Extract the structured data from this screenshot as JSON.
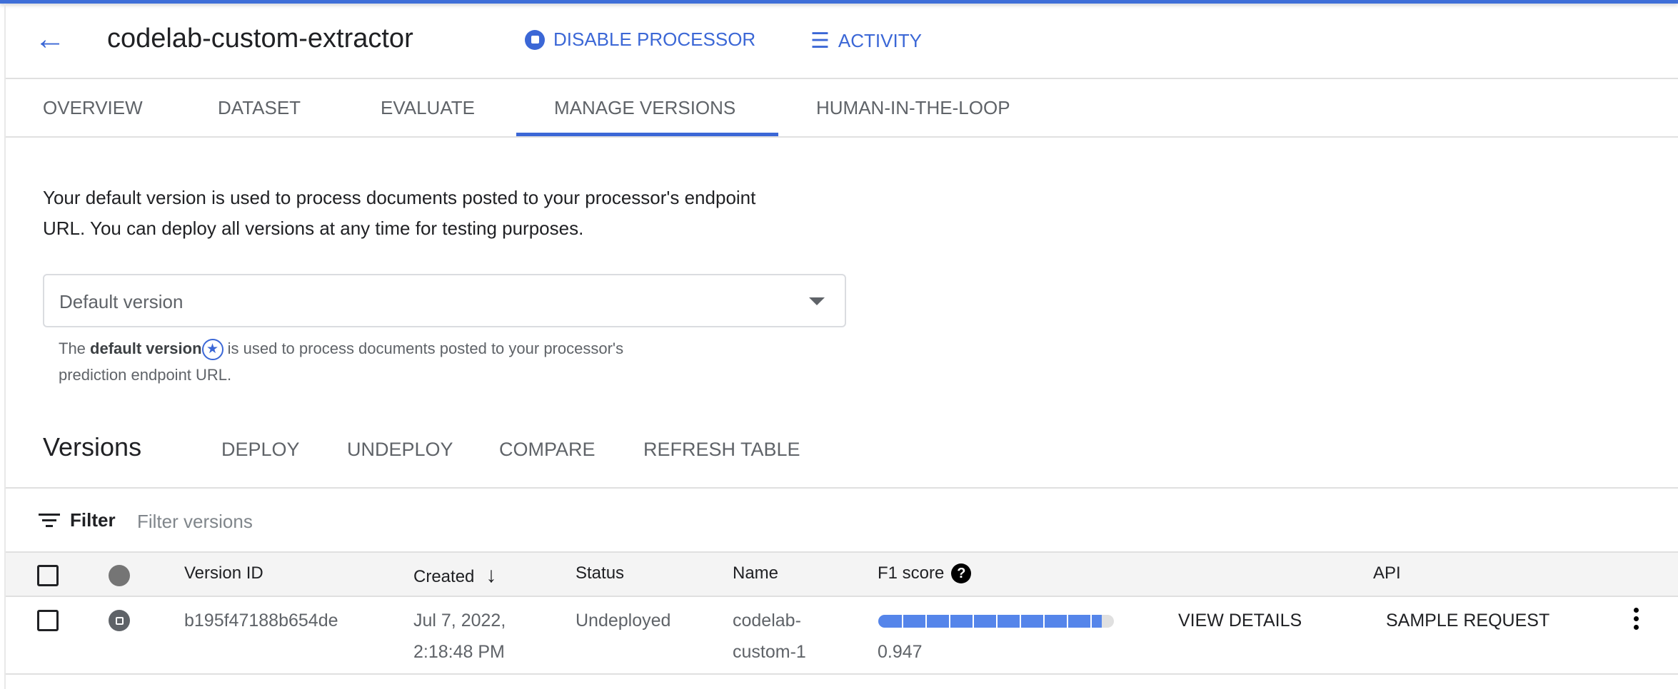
{
  "header": {
    "title": "codelab-custom-extractor",
    "disable_label": "DISABLE PROCESSOR",
    "activity_label": "ACTIVITY"
  },
  "tabs": [
    {
      "label": "OVERVIEW"
    },
    {
      "label": "DATASET"
    },
    {
      "label": "EVALUATE"
    },
    {
      "label": "MANAGE VERSIONS",
      "active": true
    },
    {
      "label": "HUMAN-IN-THE-LOOP"
    }
  ],
  "intro": {
    "line1": "Your default version is used to process documents posted to your processor's endpoint",
    "line2": "URL. You can deploy all versions at any time for testing purposes."
  },
  "default_select": {
    "placeholder": "Default version",
    "helper_pre": "The ",
    "helper_bold": "default version",
    "helper_post": " is used to process documents posted to your processor's",
    "helper_line2": "prediction endpoint URL."
  },
  "versions": {
    "title": "Versions",
    "deploy": "DEPLOY",
    "undeploy": "UNDEPLOY",
    "compare": "COMPARE",
    "refresh": "REFRESH TABLE"
  },
  "filter": {
    "label": "Filter",
    "placeholder": "Filter versions"
  },
  "table": {
    "columns": {
      "version_id": "Version ID",
      "created": "Created",
      "status": "Status",
      "name": "Name",
      "f1": "F1 score",
      "api": "API"
    },
    "rows": [
      {
        "version_id": "b195f47188b654de",
        "created_line1": "Jul 7, 2022,",
        "created_line2": "2:18:48 PM",
        "status": "Undeployed",
        "name_line1": "codelab-",
        "name_line2": "custom-1",
        "f1": 0.947,
        "f1_text": "0.947",
        "view_details": "VIEW DETAILS",
        "sample_request": "SAMPLE REQUEST"
      }
    ]
  },
  "colors": {
    "accent": "#3b67d6",
    "bar_fill": "#5585ea",
    "bar_track": "#e0e0e0"
  }
}
